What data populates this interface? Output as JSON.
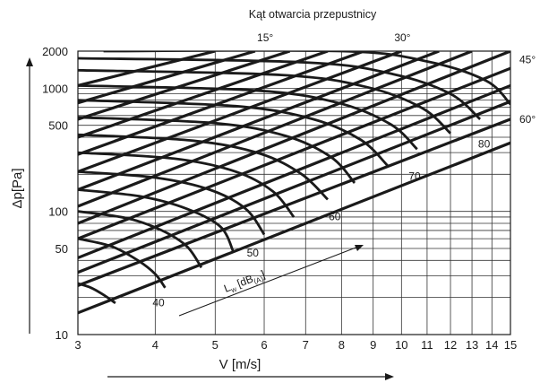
{
  "chart_data": {
    "type": "line",
    "title": "Kąt otwarcia przepustnicy",
    "xlabel": "V [m/s]",
    "ylabel": "Δp[Pa]",
    "xscale": "log",
    "yscale": "log",
    "xlim": [
      3,
      15
    ],
    "ylim": [
      10,
      2000
    ],
    "grid": true,
    "x_ticks": [
      3,
      4,
      5,
      6,
      7,
      8,
      9,
      10,
      11,
      12,
      13,
      14,
      15
    ],
    "x_tick_labels": [
      "3",
      "4",
      "5",
      "6",
      "7",
      "8",
      "9",
      "10",
      "11",
      "12",
      "13",
      "14",
      "15"
    ],
    "y_ticks": [
      10,
      50,
      100,
      500,
      1000,
      2000
    ],
    "y_tick_labels": [
      "10",
      "50",
      "100",
      "500",
      "1000",
      "2000"
    ],
    "y_grid": [
      10,
      20,
      30,
      40,
      50,
      60,
      70,
      80,
      90,
      100,
      200,
      300,
      400,
      500,
      600,
      700,
      800,
      900,
      1000,
      2000
    ],
    "damper_angle_labels": [
      {
        "text": "15°",
        "x": 6,
        "y": 2000
      },
      {
        "text": "30°",
        "x": 10,
        "y": 2000
      },
      {
        "text": "45°",
        "x": 15,
        "y": 1700
      },
      {
        "text": "60°",
        "x": 15,
        "y": 560
      }
    ],
    "pressure_lines": [
      {
        "x": [
          3,
          15
        ],
        "y": [
          15,
          360
        ]
      },
      {
        "x": [
          3,
          15
        ],
        "y": [
          25,
          560
        ]
      },
      {
        "x": [
          3,
          15
        ],
        "y": [
          32,
          780
        ]
      },
      {
        "x": [
          3,
          15
        ],
        "y": [
          42,
          1050
        ]
      },
      {
        "x": [
          3,
          15
        ],
        "y": [
          60,
          1450
        ]
      },
      {
        "x": [
          3,
          15
        ],
        "y": [
          80,
          2000
        ]
      },
      {
        "x": [
          3,
          13
        ],
        "y": [
          110,
          2000
        ]
      },
      {
        "x": [
          3,
          11.5
        ],
        "y": [
          150,
          2000
        ]
      },
      {
        "x": [
          3,
          10
        ],
        "y": [
          210,
          2000
        ]
      },
      {
        "x": [
          3,
          8.7
        ],
        "y": [
          290,
          2000
        ]
      },
      {
        "x": [
          3,
          7.6
        ],
        "y": [
          400,
          2000
        ]
      },
      {
        "x": [
          3,
          6.6
        ],
        "y": [
          560,
          2000
        ]
      },
      {
        "x": [
          3,
          5.8
        ],
        "y": [
          760,
          2000
        ]
      },
      {
        "x": [
          3,
          5.0
        ],
        "y": [
          1050,
          2000
        ]
      }
    ],
    "sound_level_series": [
      {
        "name": "40",
        "x": [
          3,
          3.15,
          3.3,
          3.45
        ],
        "y": [
          26,
          24,
          21,
          18
        ]
      },
      {
        "name": "",
        "x": [
          3,
          3.4,
          3.75,
          4.0,
          4.15
        ],
        "y": [
          60,
          52,
          40,
          31,
          24
        ]
      },
      {
        "name": "",
        "x": [
          3,
          3.6,
          4.1,
          4.5,
          4.75
        ],
        "y": [
          100,
          88,
          70,
          52,
          35
        ]
      },
      {
        "name": "50",
        "x": [
          3,
          3.8,
          4.5,
          5.1,
          5.35
        ],
        "y": [
          150,
          132,
          105,
          75,
          47
        ]
      },
      {
        "name": "",
        "x": [
          3,
          4.0,
          4.9,
          5.6,
          6.0
        ],
        "y": [
          210,
          188,
          150,
          105,
          65
        ]
      },
      {
        "name": "",
        "x": [
          3,
          4.3,
          5.4,
          6.2,
          6.7
        ],
        "y": [
          300,
          268,
          210,
          145,
          90
        ]
      },
      {
        "name": "60",
        "x": [
          3,
          4.6,
          5.9,
          6.9,
          7.6
        ],
        "y": [
          420,
          375,
          295,
          200,
          125
        ]
      },
      {
        "name": "",
        "x": [
          3,
          5.0,
          6.5,
          7.7,
          8.4
        ],
        "y": [
          580,
          520,
          410,
          275,
          170
        ]
      },
      {
        "name": "70",
        "x": [
          3,
          5.4,
          7.2,
          8.6,
          9.5
        ],
        "y": [
          800,
          715,
          560,
          380,
          235
        ]
      },
      {
        "name": "",
        "x": [
          3,
          5.8,
          7.9,
          9.6,
          10.6
        ],
        "y": [
          1050,
          960,
          760,
          510,
          320
        ]
      },
      {
        "name": "80",
        "x": [
          3,
          6.4,
          8.8,
          10.8,
          12.0
        ],
        "y": [
          1400,
          1280,
          1020,
          690,
          430
        ]
      },
      {
        "name": "",
        "x": [
          3,
          7.0,
          9.7,
          12.0,
          13.4
        ],
        "y": [
          1750,
          1620,
          1300,
          900,
          560
        ]
      },
      {
        "name": "",
        "x": [
          3.3,
          8.0,
          11.0,
          13.7,
          15
        ],
        "y": [
          2000,
          2000,
          1650,
          1150,
          740
        ]
      }
    ],
    "sound_level_labels": [
      {
        "text": "40",
        "x": 4.05,
        "y": 17
      },
      {
        "text": "50",
        "x": 5.75,
        "y": 43
      },
      {
        "text": "60",
        "x": 7.8,
        "y": 85
      },
      {
        "text": "70",
        "x": 10.5,
        "y": 180
      },
      {
        "text": "80",
        "x": 13.6,
        "y": 330
      }
    ],
    "arrow_annotation": {
      "text_main": "L",
      "text_sub1": "w",
      "text_mid": " [dB",
      "text_sub2": "(A)",
      "text_end": "]"
    }
  }
}
